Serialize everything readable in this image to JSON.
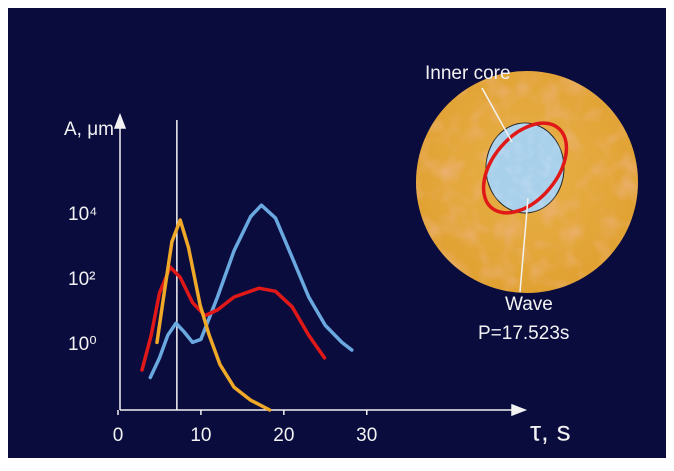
{
  "chart_data": {
    "type": "line",
    "y_label": "A, μm",
    "x_label": "τ, s",
    "log_y": true,
    "xlim": [
      0,
      48
    ],
    "ylim": [
      0.01,
      1000000
    ],
    "xticks": [
      0,
      10,
      20,
      30
    ],
    "yticks": [
      {
        "value": 1,
        "label": "10⁰"
      },
      {
        "value": 100,
        "label": "10²"
      },
      {
        "value": 10000,
        "label": "10⁴"
      }
    ],
    "reference_line": {
      "x": 7.1,
      "color": "#f4f4f4"
    },
    "series": [
      {
        "color": "#6aa8e0",
        "x": [
          3.9,
          5,
          6,
          7,
          8,
          9,
          10,
          12,
          14,
          16,
          17.3,
          19,
          21,
          23,
          25,
          27,
          28.2
        ],
        "values": [
          0.1,
          0.4,
          2,
          4.7,
          2.5,
          1.2,
          1.5,
          30,
          800,
          9000,
          20000,
          8000,
          500,
          30,
          4,
          1.2,
          0.7
        ]
      },
      {
        "color": "#e01818",
        "x": [
          2.9,
          4,
          5,
          6.3,
          7.5,
          9,
          10.5,
          12,
          14,
          17,
          19,
          21,
          23,
          24.9
        ],
        "values": [
          0.17,
          2,
          40,
          250,
          120,
          20,
          8,
          12,
          30,
          56,
          45,
          15,
          2,
          0.4
        ]
      },
      {
        "color": "#f0a828",
        "x": [
          4.7,
          5.5,
          6.5,
          7.5,
          8.5,
          9.9,
          11,
          12.3,
          14,
          16,
          18.3
        ],
        "values": [
          1.2,
          30,
          1500,
          7000,
          1000,
          17,
          2,
          0.25,
          0.05,
          0.02,
          0.01
        ]
      }
    ],
    "annotations": [
      "Inner core",
      "Wave",
      "P=17.523s"
    ]
  }
}
